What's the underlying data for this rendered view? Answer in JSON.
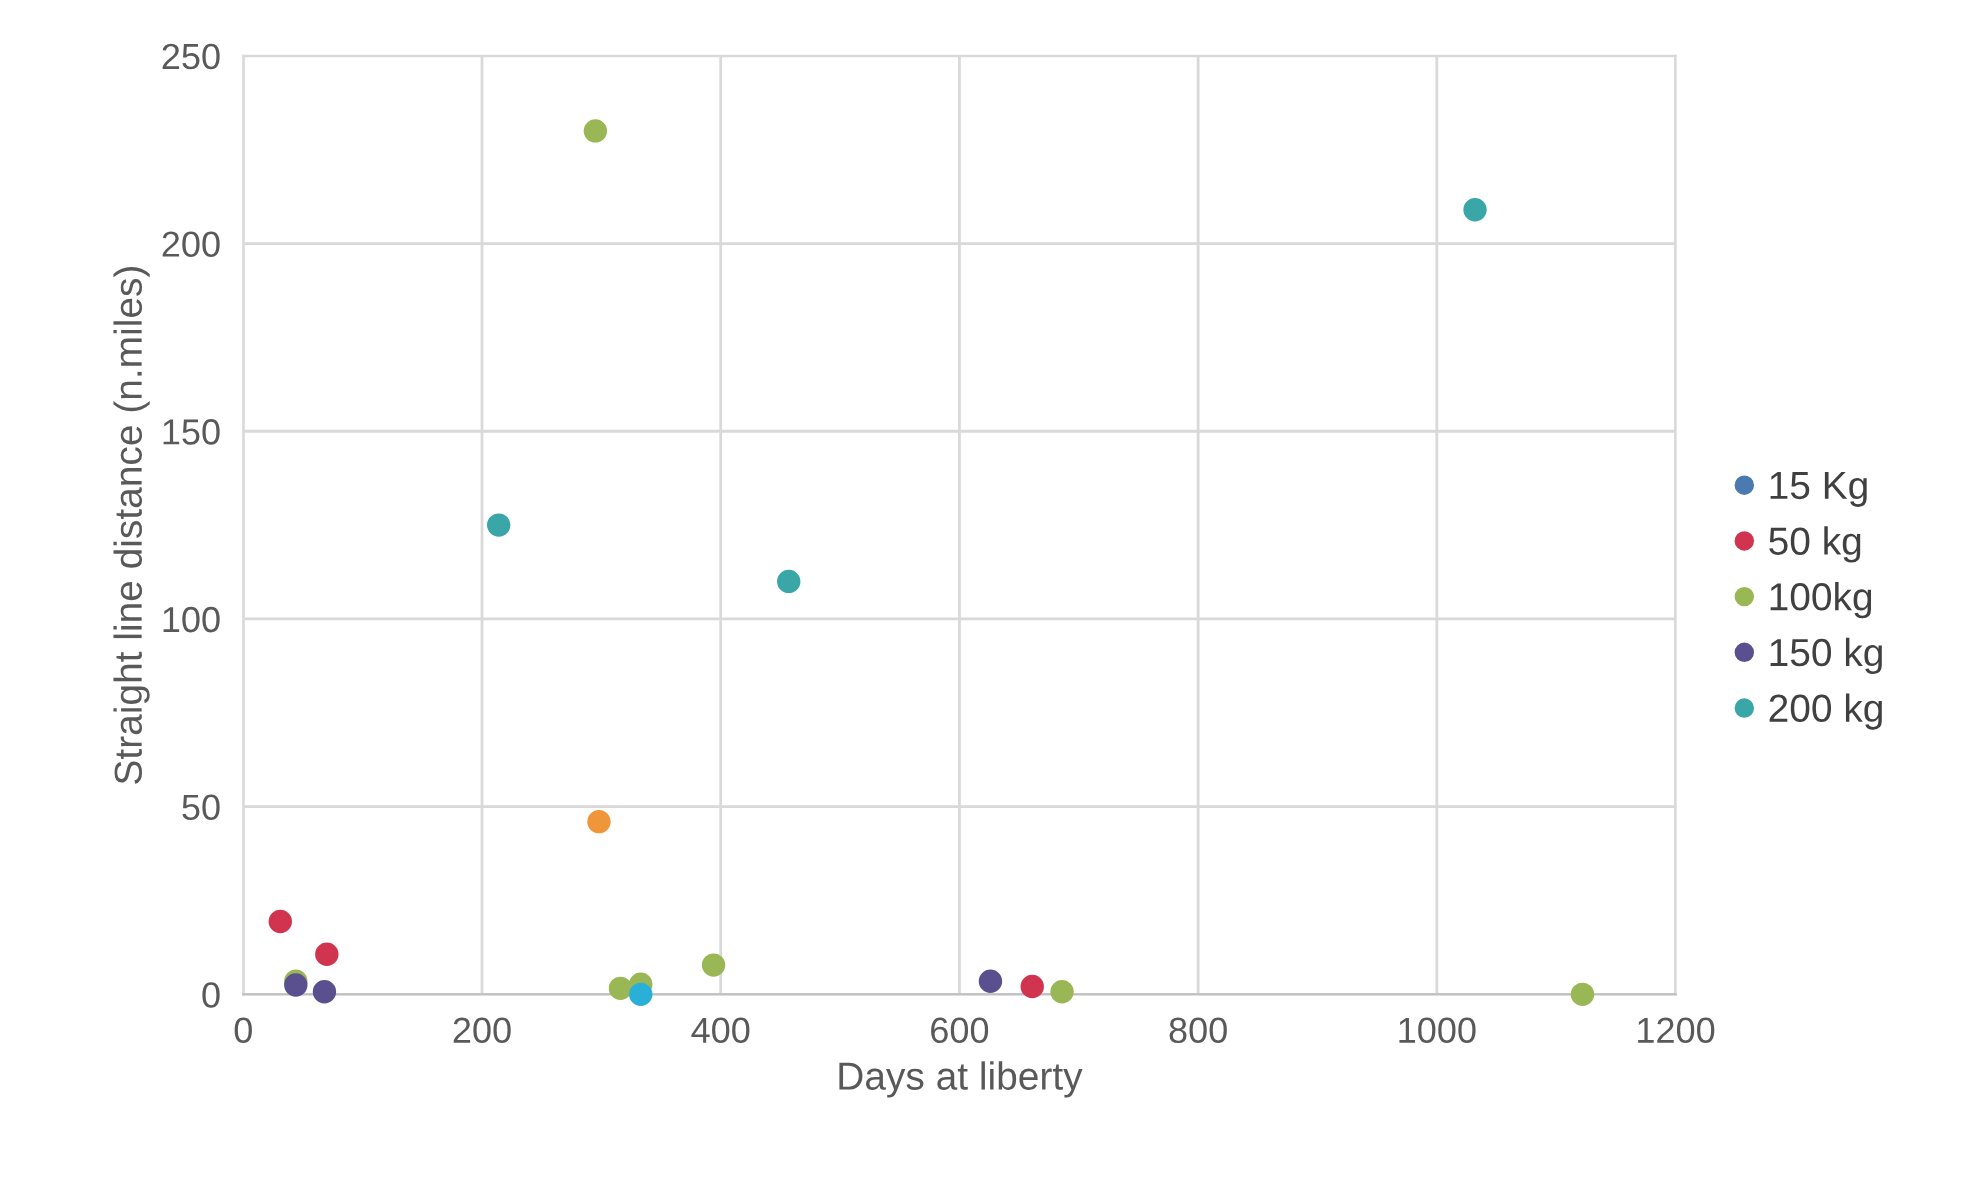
{
  "chart_data": {
    "type": "scatter",
    "xlabel": "Days at liberty",
    "ylabel": "Straight line distance (n.miles)",
    "xlim": [
      0,
      1200
    ],
    "xticks": [
      0,
      200,
      400,
      600,
      800,
      1000,
      1200
    ],
    "ylim": [
      0,
      250
    ],
    "yticks": [
      0,
      50,
      100,
      150,
      200,
      250
    ],
    "grid": true,
    "legend": "right",
    "marker": "circle",
    "series": [
      {
        "name": "15 Kg",
        "color": "#4a7ab0"
      },
      {
        "name": "50 kg",
        "color": "#d0344e",
        "x": [
          31,
          70,
          661
        ],
        "values": [
          19.4,
          10.7,
          2.1
        ]
      },
      {
        "name": "100kg",
        "color": "#9ab755",
        "x": [
          295,
          44,
          316,
          333,
          394,
          686,
          1122
        ],
        "values": [
          230,
          3.5,
          1.6,
          2.7,
          7.8,
          0.7,
          0
        ]
      },
      {
        "name": "150 kg",
        "color": "#5a5090",
        "x": [
          44,
          68,
          626
        ],
        "values": [
          2.5,
          0.7,
          3.5
        ]
      },
      {
        "name": "200 kg",
        "color": "#3aa6a8",
        "x": [
          214,
          457,
          1032
        ],
        "values": [
          125,
          110,
          209
        ]
      },
      {
        "color": "#f0963a",
        "x": [
          298
        ],
        "values": [
          46
        ]
      },
      {
        "color": "#2ab0d8",
        "x": [
          333
        ],
        "values": [
          0
        ]
      }
    ]
  }
}
